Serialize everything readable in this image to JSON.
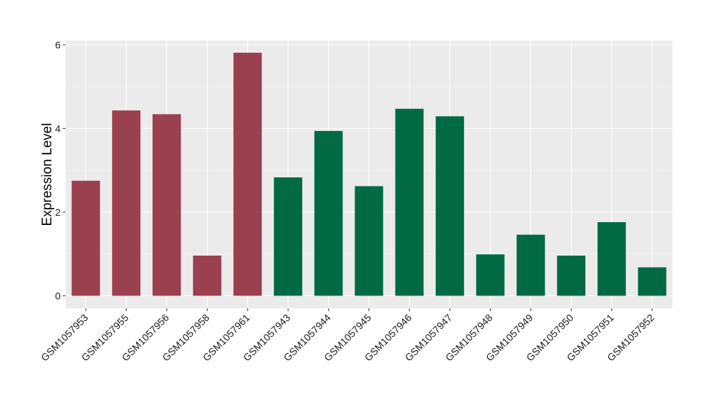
{
  "chart_data": {
    "type": "bar",
    "ylabel": "Expression Level",
    "xlabel": "",
    "ylim": [
      -0.3,
      6.1
    ],
    "yticks": [
      0,
      2,
      4,
      6
    ],
    "categories": [
      "GSM1057953",
      "GSM1057955",
      "GSM1057956",
      "GSM1057958",
      "GSM1057961",
      "GSM1057943",
      "GSM1057944",
      "GSM1057945",
      "GSM1057946",
      "GSM1057947",
      "GSM1057948",
      "GSM1057949",
      "GSM1057950",
      "GSM1057951",
      "GSM1057952"
    ],
    "values": [
      2.75,
      4.43,
      4.34,
      0.96,
      5.81,
      2.83,
      3.94,
      2.62,
      4.47,
      4.29,
      0.99,
      1.46,
      0.96,
      1.76,
      0.68
    ],
    "groups": [
      "g1",
      "g1",
      "g1",
      "g1",
      "g1",
      "g2",
      "g2",
      "g2",
      "g2",
      "g2",
      "g2",
      "g2",
      "g2",
      "g2",
      "g2"
    ],
    "group_colors": {
      "g1": "#9a404e",
      "g2": "#006a45"
    },
    "panel_background": "#ebebeb",
    "grid": true
  }
}
